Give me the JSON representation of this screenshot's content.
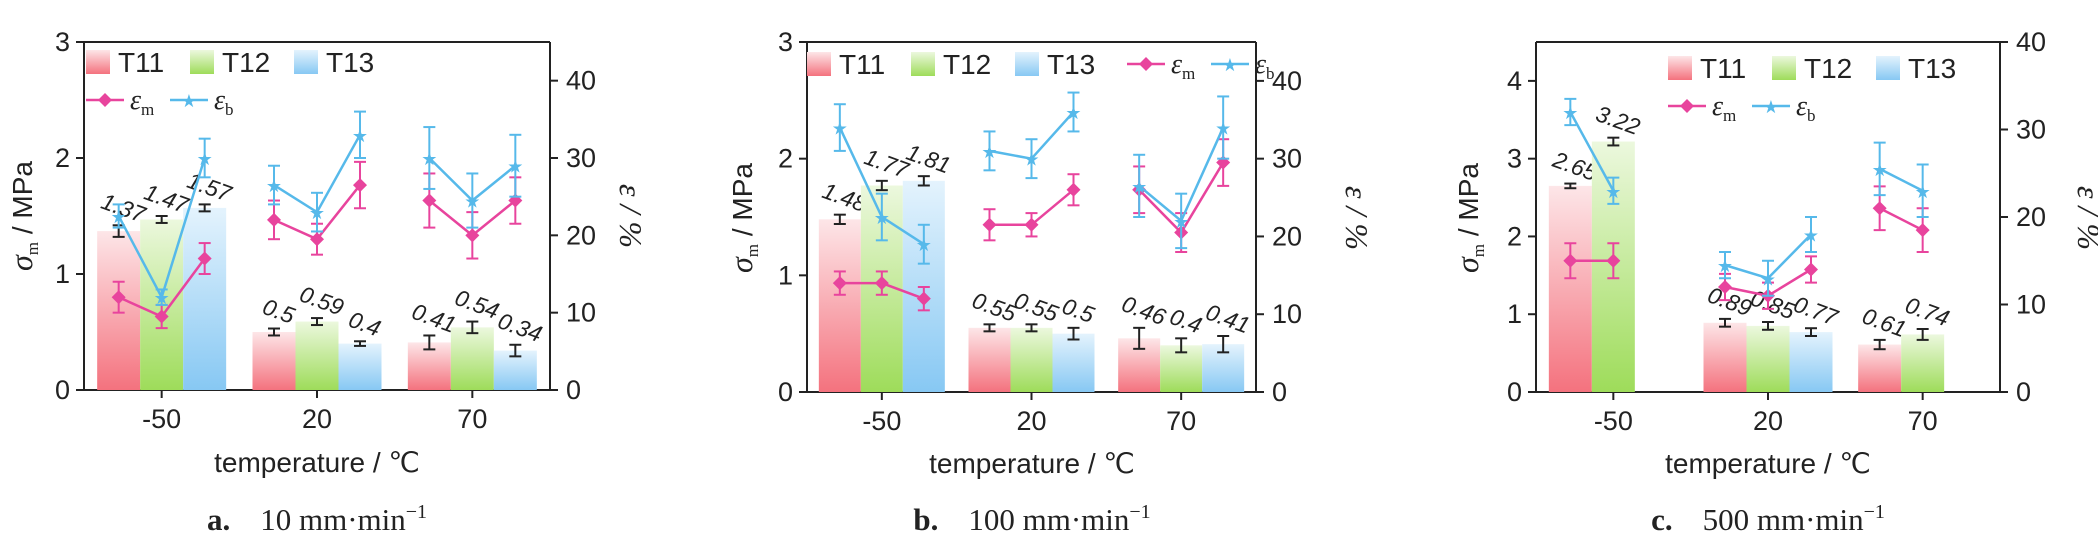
{
  "colors": {
    "T11": "#f4727e",
    "T12": "#9edc5a",
    "T13": "#87c8f3",
    "eps_m": "#e8449d",
    "eps_b": "#56b9ea"
  },
  "common": {
    "xlabel": "temperature / ℃",
    "ylabel_left_symbol": "σ",
    "ylabel_left_sub": "m",
    "ylabel_left_unit": " / MPa",
    "ylabel_right": "ε / %",
    "legend_bars": [
      "T11",
      "T12",
      "T13"
    ],
    "legend_eps_symbol": "ε",
    "legend_eps_subs": [
      "m",
      "b"
    ],
    "categories": [
      "-50",
      "20",
      "70"
    ]
  },
  "chart_data": [
    {
      "type": "bar",
      "caption_letter": "a.",
      "caption_text": "10 mm·min",
      "caption_sup": "−1",
      "legend_layout": "two-rows",
      "categories": [
        "-50",
        "20",
        "70"
      ],
      "ylim_left": [
        0,
        3
      ],
      "yticks_left": [
        "0",
        "1",
        "2",
        "3"
      ],
      "ylim_right": [
        0,
        45
      ],
      "yticks_right": [
        "0",
        "10",
        "20",
        "30",
        "40"
      ],
      "series": [
        {
          "name": "T11",
          "values": [
            1.37,
            0.5,
            0.41
          ],
          "labels": [
            "1.37",
            "0.5",
            "0.41"
          ],
          "err": [
            0.05,
            0.03,
            0.06
          ]
        },
        {
          "name": "T12",
          "values": [
            1.47,
            0.59,
            0.54
          ],
          "labels": [
            "1.47",
            "0.59",
            "0.54"
          ],
          "err": [
            0.03,
            0.03,
            0.05
          ]
        },
        {
          "name": "T13",
          "values": [
            1.57,
            0.4,
            0.34
          ],
          "labels": [
            "1.57",
            "0.4",
            "0.34"
          ],
          "err": [
            0.03,
            0.02,
            0.05
          ]
        }
      ],
      "line_series": [
        {
          "name": "εm",
          "values": [
            [
              12,
              9.5,
              17
            ],
            [
              22,
              19.5,
              26.5
            ],
            [
              24.5,
              20,
              24.5
            ]
          ],
          "err": [
            [
              2,
              1.5,
              2
            ],
            [
              2.5,
              2,
              3
            ],
            [
              3.5,
              3,
              3
            ]
          ]
        },
        {
          "name": "εb",
          "values": [
            [
              22.5,
              12,
              30
            ],
            [
              26.5,
              23,
              33
            ],
            [
              30,
              24.5,
              29
            ]
          ],
          "err": [
            [
              1.5,
              1,
              2.5
            ],
            [
              2.5,
              2.5,
              3
            ],
            [
              4,
              3.5,
              4
            ]
          ]
        }
      ]
    },
    {
      "type": "bar",
      "caption_letter": "b.",
      "caption_text": "100 mm·min",
      "caption_sup": "−1",
      "legend_layout": "one-row",
      "categories": [
        "-50",
        "20",
        "70"
      ],
      "ylim_left": [
        0,
        3
      ],
      "yticks_left": [
        "0",
        "1",
        "2",
        "3"
      ],
      "ylim_right": [
        0,
        45
      ],
      "yticks_right": [
        "0",
        "10",
        "20",
        "30",
        "40"
      ],
      "series": [
        {
          "name": "T11",
          "values": [
            1.48,
            0.55,
            0.46
          ],
          "labels": [
            "1.48",
            "0.55",
            "0.46"
          ],
          "err": [
            0.04,
            0.03,
            0.09
          ]
        },
        {
          "name": "T12",
          "values": [
            1.77,
            0.55,
            0.4
          ],
          "labels": [
            "1.77",
            "0.55",
            "0.4"
          ],
          "err": [
            0.04,
            0.03,
            0.06
          ]
        },
        {
          "name": "T13",
          "values": [
            1.81,
            0.5,
            0.41
          ],
          "labels": [
            "1.81",
            "0.5",
            "0.41"
          ],
          "err": [
            0.04,
            0.05,
            0.07
          ]
        }
      ],
      "line_series": [
        {
          "name": "εm",
          "values": [
            [
              14,
              14,
              12
            ],
            [
              21.5,
              21.5,
              26
            ],
            [
              26,
              20.5,
              29.5
            ]
          ],
          "err": [
            [
              1.5,
              1.5,
              1.5
            ],
            [
              2,
              1.5,
              2
            ],
            [
              3,
              2.5,
              3
            ]
          ]
        },
        {
          "name": "εb",
          "values": [
            [
              34,
              22.5,
              19
            ],
            [
              31,
              30,
              36
            ],
            [
              26.5,
              22,
              34
            ]
          ],
          "err": [
            [
              3,
              3,
              2.5
            ],
            [
              2.5,
              2.5,
              2.5
            ],
            [
              4,
              3.5,
              4
            ]
          ]
        }
      ]
    },
    {
      "type": "bar",
      "caption_letter": "c.",
      "caption_text": "500 mm·min",
      "caption_sup": "−1",
      "legend_layout": "two-rows",
      "categories": [
        "-50",
        "20",
        "70"
      ],
      "ylim_left": [
        0,
        4.5
      ],
      "yticks_left": [
        "0",
        "1",
        "2",
        "3",
        "4"
      ],
      "ylim_right": [
        0,
        40
      ],
      "yticks_right": [
        "0",
        "10",
        "20",
        "30",
        "40"
      ],
      "series": [
        {
          "name": "T11",
          "values": [
            2.65,
            0.89,
            0.61
          ],
          "labels": [
            "2.65",
            "0.89",
            "0.61"
          ],
          "err": [
            0.03,
            0.05,
            0.06
          ]
        },
        {
          "name": "T12",
          "values": [
            3.22,
            0.85,
            0.74
          ],
          "labels": [
            "3.22",
            "0.85",
            "0.74"
          ],
          "err": [
            0.05,
            0.05,
            0.07
          ]
        },
        {
          "name": "T13",
          "values": [
            null,
            0.77,
            null
          ],
          "labels": [
            "",
            "0.77",
            ""
          ],
          "err": [
            0,
            0.05,
            0
          ]
        }
      ],
      "line_series": [
        {
          "name": "εm",
          "values": [
            [
              15,
              15
            ],
            [
              12,
              11,
              14
            ],
            [
              21,
              18.5
            ]
          ],
          "err": [
            [
              2,
              2
            ],
            [
              1.5,
              1.5,
              1.5
            ],
            [
              2.5,
              2.5
            ]
          ]
        },
        {
          "name": "εb",
          "values": [
            [
              32,
              23
            ],
            [
              14.5,
              13,
              18
            ],
            [
              25.5,
              23
            ]
          ],
          "err": [
            [
              1.5,
              1.5
            ],
            [
              1.5,
              2,
              2
            ],
            [
              3,
              3
            ]
          ]
        }
      ]
    }
  ]
}
